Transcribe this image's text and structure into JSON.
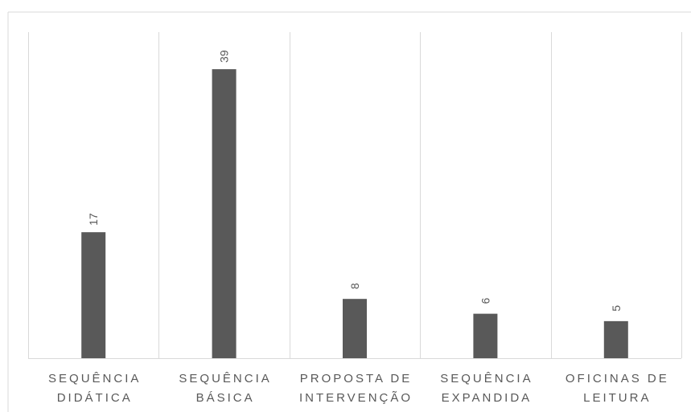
{
  "chart_data": {
    "type": "bar",
    "title": "",
    "xlabel": "",
    "ylabel": "",
    "categories": [
      [
        "SEQUÊNCIA",
        "DIDÁTICA"
      ],
      [
        "SEQUÊNCIA",
        "BÁSICA"
      ],
      [
        "PROPOSTA DE",
        "INTERVENÇÃO"
      ],
      [
        "SEQUÊNCIA",
        "EXPANDIDA"
      ],
      [
        "OFICINAS DE",
        "LEITURA"
      ]
    ],
    "values": [
      17,
      39,
      8,
      6,
      5
    ],
    "ylim": [
      0,
      44
    ],
    "grid": "vertical category separators",
    "data_labels": true,
    "data_label_rotation": "vertical",
    "colors": {
      "bar": "#595959",
      "grid": "#d9d9d9",
      "frame": "#d9d9d9",
      "text": "#595959"
    }
  }
}
